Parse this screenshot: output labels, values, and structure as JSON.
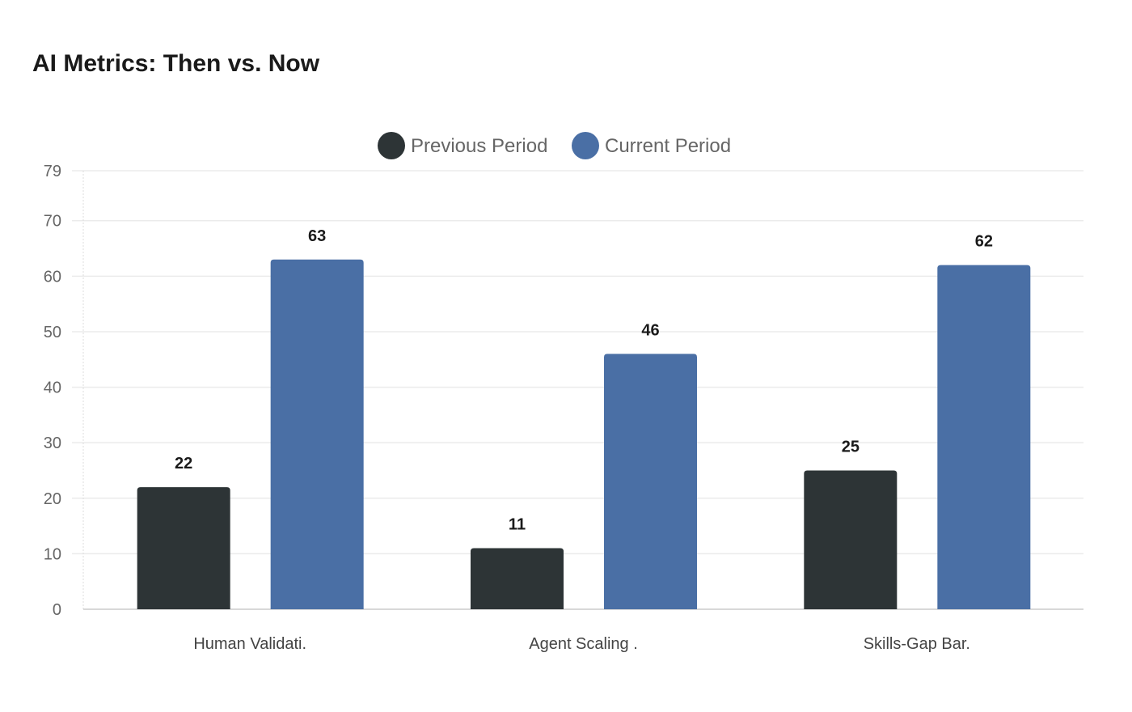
{
  "chart_data": {
    "type": "bar",
    "title": "AI Metrics: Then vs. Now",
    "categories": [
      "Human Validati.",
      "Agent Scaling .",
      "Skills-Gap Bar."
    ],
    "series": [
      {
        "name": "Previous Period",
        "values": [
          22,
          11,
          25
        ],
        "color": "#2d3436"
      },
      {
        "name": "Current Period",
        "values": [
          63,
          46,
          62
        ],
        "color": "#4a6fa5"
      }
    ],
    "ylim": [
      0,
      79
    ],
    "yticks": [
      0,
      10,
      20,
      30,
      40,
      50,
      60,
      70,
      79
    ],
    "grid": true,
    "legend": "top-center",
    "data_labels": true,
    "xlabel": "",
    "ylabel": ""
  }
}
